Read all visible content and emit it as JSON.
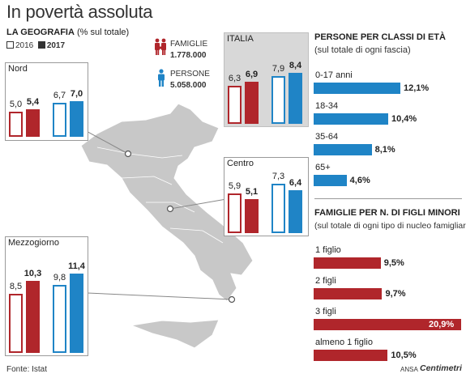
{
  "title": "In povertà assoluta",
  "geography": {
    "heading": "LA GEOGRAFIA",
    "subtitle": "(% sul totale)",
    "legend": {
      "y2016": "2016",
      "y2017": "2017"
    }
  },
  "totals": {
    "families_label": "FAMIGLIE",
    "families_value": "1.778.000",
    "persons_label": "PERSONE",
    "persons_value": "5.058.000"
  },
  "regions": [
    {
      "name": "Nord",
      "families": [
        5.0,
        5.4
      ],
      "persons": [
        6.7,
        7.0
      ],
      "labels": [
        "5,0",
        "5,4",
        "6,7",
        "7,0"
      ]
    },
    {
      "name": "ITALIA",
      "families": [
        6.3,
        6.9
      ],
      "persons": [
        7.9,
        8.4
      ],
      "labels": [
        "6,3",
        "6,9",
        "7,9",
        "8,4"
      ]
    },
    {
      "name": "Centro",
      "families": [
        5.9,
        5.1
      ],
      "persons": [
        7.3,
        6.4
      ],
      "labels": [
        "5,9",
        "5,1",
        "7,3",
        "6,4"
      ]
    },
    {
      "name": "Mezzogiorno",
      "families": [
        8.5,
        10.3
      ],
      "persons": [
        9.8,
        11.4
      ],
      "labels": [
        "8,5",
        "10,3",
        "9,8",
        "11,4"
      ]
    }
  ],
  "age": {
    "heading": "PERSONE PER CLASSI DI ETÀ",
    "subtitle": "(sul totale di ogni fascia)",
    "items": [
      {
        "label": "0-17 anni",
        "value": 12.1,
        "text": "12,1%"
      },
      {
        "label": "18-34",
        "value": 10.4,
        "text": "10,4%"
      },
      {
        "label": "35-64",
        "value": 8.1,
        "text": "8,1%"
      },
      {
        "label": "65+",
        "value": 4.6,
        "text": "4,6%"
      }
    ]
  },
  "children": {
    "heading": "FAMIGLIE PER N. DI FIGLI MINORI",
    "subtitle": "(sul totale di ogni tipo di nucleo famigliare)",
    "items": [
      {
        "label": "1 figlio",
        "value": 9.5,
        "text": "9,5%"
      },
      {
        "label": "2 figli",
        "value": 9.7,
        "text": "9,7%"
      },
      {
        "label": "3 figli",
        "value": 20.9,
        "text": "20,9%"
      },
      {
        "label": "almeno 1 figlio",
        "value": 10.5,
        "text": "10,5%"
      }
    ]
  },
  "source": "Fonte: Istat",
  "credit": "ANSA",
  "credit_brand": "Centimetri",
  "colors": {
    "red": "#b0262b",
    "blue": "#1f84c6",
    "map": "#c8c8c8"
  },
  "chart_data": [
    {
      "type": "bar",
      "title": "LA GEOGRAFIA (% sul totale)",
      "categories": [
        "Nord",
        "ITALIA",
        "Centro",
        "Mezzogiorno"
      ],
      "series": [
        {
          "name": "FAMIGLIE 2016",
          "values": [
            5.0,
            6.3,
            5.9,
            8.5
          ]
        },
        {
          "name": "FAMIGLIE 2017",
          "values": [
            5.4,
            6.9,
            5.1,
            10.3
          ]
        },
        {
          "name": "PERSONE 2016",
          "values": [
            6.7,
            7.9,
            7.3,
            9.8
          ]
        },
        {
          "name": "PERSONE 2017",
          "values": [
            7.0,
            8.4,
            6.4,
            11.4
          ]
        }
      ]
    },
    {
      "type": "bar",
      "title": "PERSONE PER CLASSI DI ETÀ",
      "categories": [
        "0-17 anni",
        "18-34",
        "35-64",
        "65+"
      ],
      "values": [
        12.1,
        10.4,
        8.1,
        4.6
      ]
    },
    {
      "type": "bar",
      "title": "FAMIGLIE PER N. DI FIGLI MINORI",
      "categories": [
        "1 figlio",
        "2 figli",
        "3 figli",
        "almeno 1 figlio"
      ],
      "values": [
        9.5,
        9.7,
        20.9,
        10.5
      ]
    }
  ]
}
